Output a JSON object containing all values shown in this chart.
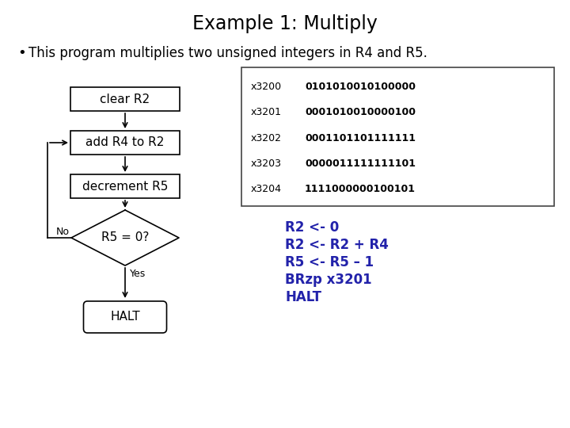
{
  "title": "Example 1: Multiply",
  "bullet": "This program multiplies two unsigned integers in R4 and R5.",
  "flowchart_boxes": [
    "clear R2",
    "add R4 to R2",
    "decrement R5"
  ],
  "diamond_label": "R5 = 0?",
  "halt_label": "HALT",
  "no_label": "No",
  "yes_label": "Yes",
  "code_lines": [
    [
      "x3200",
      "0101010010100000"
    ],
    [
      "x3201",
      "0001010010000100"
    ],
    [
      "x3202",
      "0001101101111111"
    ],
    [
      "x3203",
      "0000011111111101"
    ],
    [
      "x3204",
      "1111000000100101"
    ]
  ],
  "asm_lines": [
    "R2 <- 0",
    "R2 <- R2 + R4",
    "R5 <- R5 – 1",
    "BRzp x3201",
    "HALT"
  ],
  "title_fontsize": 17,
  "bullet_fontsize": 12,
  "code_fontsize": 9,
  "asm_fontsize": 12,
  "bg_color": "#ffffff",
  "title_color": "#000000",
  "bullet_color": "#000000",
  "box_color": "#000000",
  "code_color": "#000000",
  "asm_color": "#2222aa"
}
